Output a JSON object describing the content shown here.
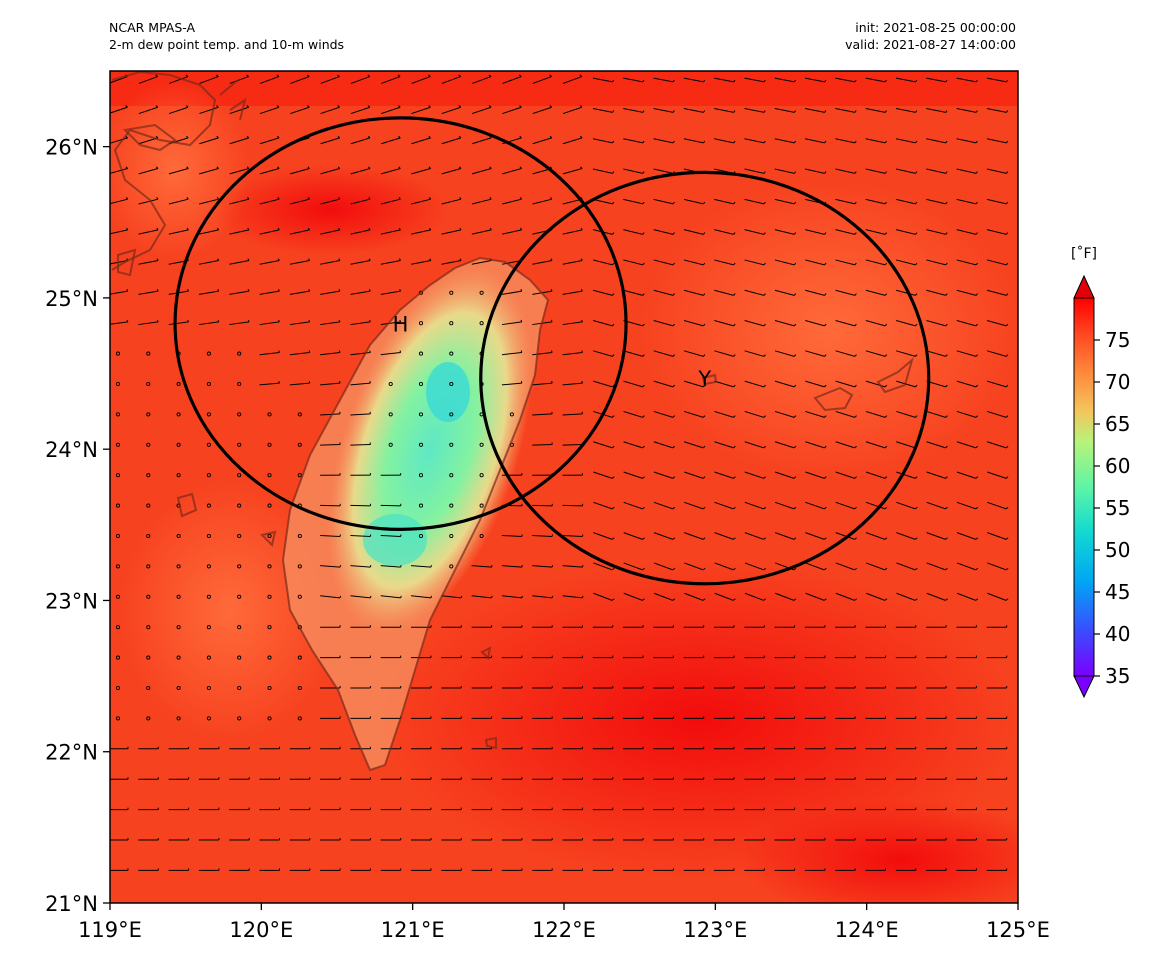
{
  "header": {
    "model": "NCAR MPAS-A",
    "field": "2-m dew point temp. and 10-m winds",
    "init": "init: 2021-08-25 00:00:00",
    "valid": "valid: 2021-08-27 14:00:00"
  },
  "map": {
    "extent": {
      "lon": [
        119,
        125
      ],
      "lat": [
        21,
        26.5
      ]
    },
    "lon_ticks": [
      {
        "value": 119,
        "label": "119°E"
      },
      {
        "value": 120,
        "label": "120°E"
      },
      {
        "value": 121,
        "label": "121°E"
      },
      {
        "value": 122,
        "label": "122°E"
      },
      {
        "value": 123,
        "label": "123°E"
      },
      {
        "value": 124,
        "label": "124°E"
      },
      {
        "value": 125,
        "label": "125°E"
      }
    ],
    "lat_ticks": [
      {
        "value": 21,
        "label": "21°N"
      },
      {
        "value": 22,
        "label": "22°N"
      },
      {
        "value": 23,
        "label": "23°N"
      },
      {
        "value": 24,
        "label": "24°N"
      },
      {
        "value": 25,
        "label": "25°N"
      },
      {
        "value": 26,
        "label": "26°N"
      }
    ],
    "circles": [
      {
        "name": "circle-h",
        "lon": 120.92,
        "lat": 24.83,
        "r_lon": 1.49,
        "r_lat": 1.36,
        "label": "H"
      },
      {
        "name": "circle-y",
        "lon": 122.93,
        "lat": 24.47,
        "r_lon": 1.48,
        "r_lat": 1.36,
        "label": "Y"
      }
    ]
  },
  "colorbar": {
    "unit": "[˚F]",
    "min": 35,
    "max": 80,
    "ticks": [
      35,
      40,
      45,
      50,
      55,
      60,
      65,
      70,
      75
    ],
    "extend": "both"
  },
  "chart_data": {
    "type": "heatmap",
    "title": "2-m dew point temp. and 10-m winds",
    "subtitle": "NCAR MPAS-A",
    "xlabel": "",
    "ylabel": "",
    "xlim": [
      119,
      125
    ],
    "ylim": [
      21,
      26.5
    ],
    "field_range_F": [
      35,
      80
    ],
    "field_description": "dew point mostly 72-78 F over ocean; minimum about 55 F over central Taiwan mountains near 121.3E 24.4N",
    "overlays": [
      "wind barbs",
      "two circles labeled H and Y",
      "coastlines"
    ]
  }
}
